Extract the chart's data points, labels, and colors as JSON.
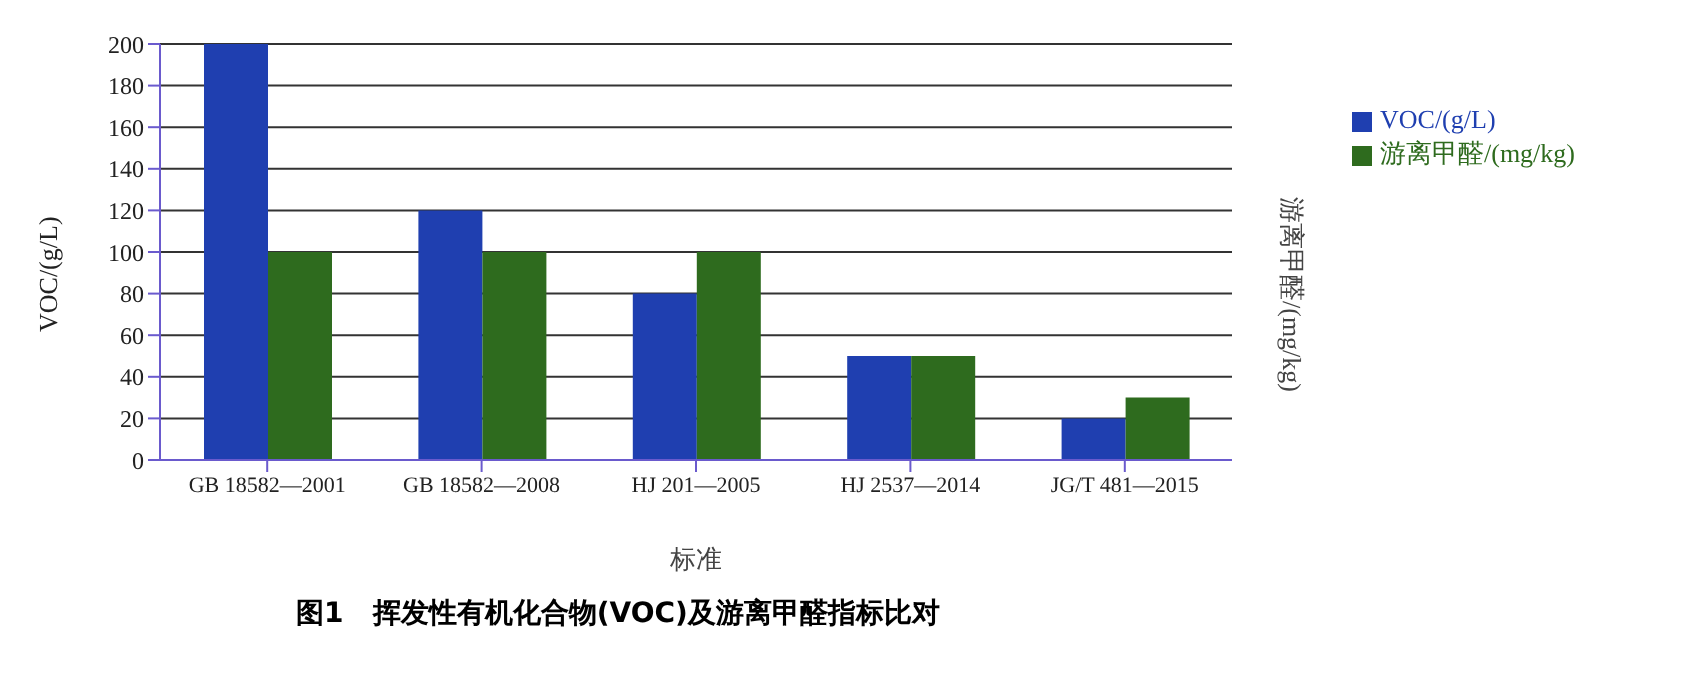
{
  "chart_data": {
    "type": "bar",
    "xlabel": "标准",
    "ylabel": "VOC/(g/L)",
    "y2label": "游离甲醛/(mg/kg)",
    "categories": [
      "GB 18582—2001",
      "GB 18582—2008",
      "HJ 201—2005",
      "HJ 2537—2014",
      "JG/T 481—2015"
    ],
    "series": [
      {
        "name": "VOC/(g/L)",
        "color": "#1f3fb0",
        "values": [
          200,
          120,
          80,
          50,
          20
        ]
      },
      {
        "name": "游离甲醛/(mg/kg)",
        "color": "#2e6b1e",
        "values": [
          100,
          100,
          100,
          50,
          30
        ]
      }
    ],
    "ylim": [
      0,
      200
    ],
    "yticks": [
      0,
      20,
      40,
      60,
      80,
      100,
      120,
      140,
      160,
      180,
      200
    ],
    "grid": "y",
    "legend": "top right",
    "annotations": [
      "图1   挥发性有机化合物(VOC)及游离甲醛指标比对"
    ]
  }
}
